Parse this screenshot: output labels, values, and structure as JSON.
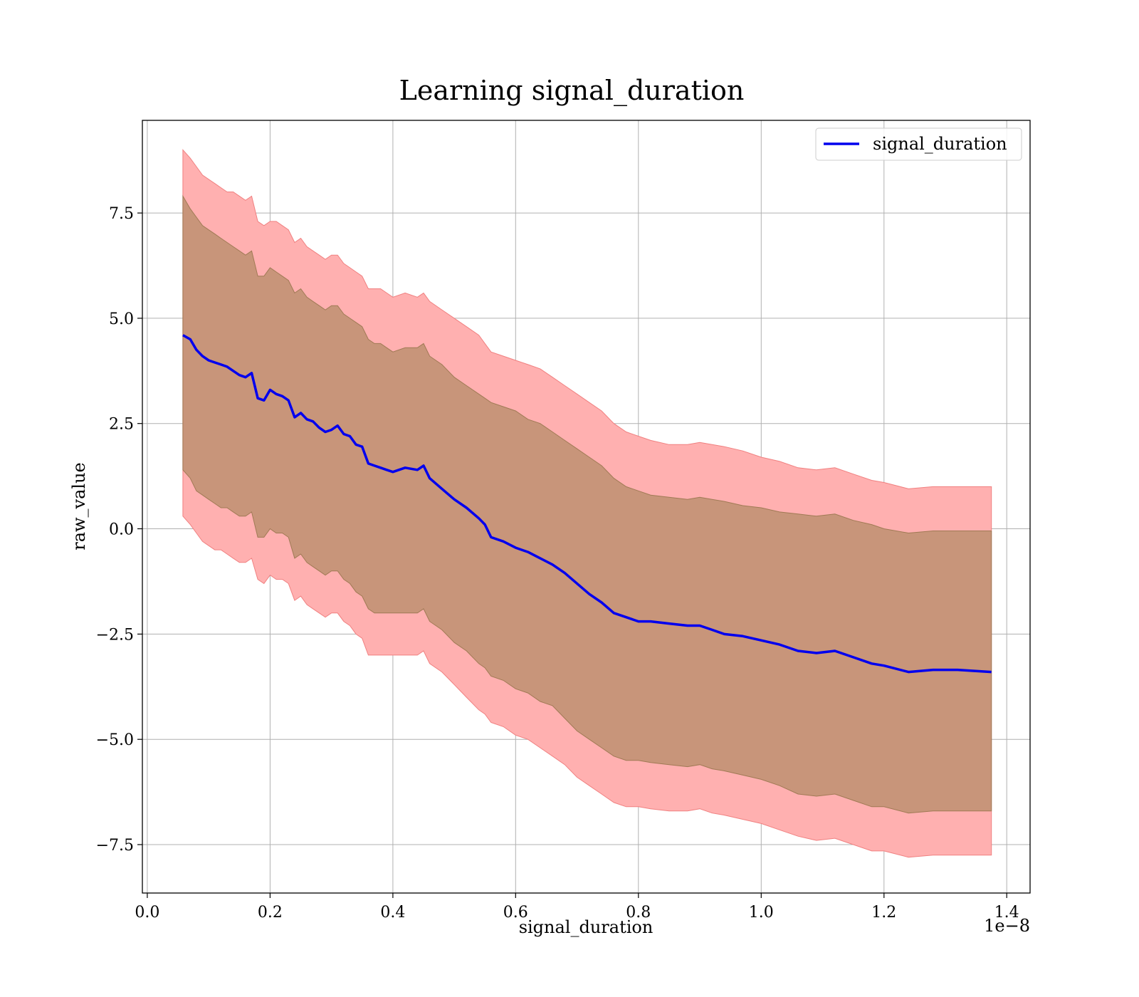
{
  "chart_data": {
    "type": "line",
    "title": "Learning signal_duration",
    "xlabel": "signal_duration",
    "ylabel": "raw_value",
    "x_offset_label": "1e−8",
    "xlim": [
      -0.008,
      1.438
    ],
    "ylim": [
      -8.65,
      9.7
    ],
    "x_ticks": [
      0.0,
      0.2,
      0.4,
      0.6,
      0.8,
      1.0,
      1.2,
      1.4
    ],
    "x_tick_labels": [
      "0.0",
      "0.2",
      "0.4",
      "0.6",
      "0.8",
      "1.0",
      "1.2",
      "1.4"
    ],
    "y_ticks": [
      -7.5,
      -5.0,
      -2.5,
      0.0,
      2.5,
      5.0,
      7.5
    ],
    "y_tick_labels": [
      "−7.5",
      "−5.0",
      "−2.5",
      "0.0",
      "2.5",
      "5.0",
      "7.5"
    ],
    "grid": true,
    "legend": {
      "position": "top-right",
      "entries": [
        "signal_duration"
      ]
    },
    "colors": {
      "line": "#0000ee",
      "band_outer": "#ffb0b0",
      "band_inner": "#c8957a",
      "band_edge": "#f08080"
    },
    "series": [
      {
        "name": "signal_duration",
        "x": [
          0.058,
          0.07,
          0.08,
          0.09,
          0.1,
          0.11,
          0.12,
          0.13,
          0.14,
          0.15,
          0.16,
          0.17,
          0.18,
          0.19,
          0.2,
          0.21,
          0.22,
          0.23,
          0.24,
          0.25,
          0.26,
          0.27,
          0.28,
          0.29,
          0.3,
          0.31,
          0.32,
          0.33,
          0.34,
          0.35,
          0.36,
          0.37,
          0.38,
          0.39,
          0.4,
          0.42,
          0.44,
          0.45,
          0.46,
          0.48,
          0.5,
          0.52,
          0.54,
          0.55,
          0.56,
          0.58,
          0.6,
          0.62,
          0.64,
          0.66,
          0.68,
          0.7,
          0.72,
          0.74,
          0.76,
          0.78,
          0.8,
          0.82,
          0.85,
          0.88,
          0.9,
          0.92,
          0.94,
          0.97,
          1.0,
          1.03,
          1.06,
          1.09,
          1.12,
          1.15,
          1.18,
          1.2,
          1.24,
          1.28,
          1.32,
          1.375
        ],
        "mean": [
          4.6,
          4.5,
          4.25,
          4.1,
          4.0,
          3.95,
          3.9,
          3.85,
          3.75,
          3.65,
          3.6,
          3.7,
          3.1,
          3.05,
          3.3,
          3.2,
          3.15,
          3.05,
          2.65,
          2.75,
          2.6,
          2.55,
          2.4,
          2.3,
          2.35,
          2.45,
          2.25,
          2.2,
          2.0,
          1.95,
          1.55,
          1.5,
          1.45,
          1.4,
          1.35,
          1.45,
          1.4,
          1.5,
          1.2,
          0.95,
          0.7,
          0.5,
          0.25,
          0.1,
          -0.2,
          -0.3,
          -0.45,
          -0.55,
          -0.7,
          -0.85,
          -1.05,
          -1.3,
          -1.55,
          -1.75,
          -2.0,
          -2.1,
          -2.2,
          -2.2,
          -2.25,
          -2.3,
          -2.3,
          -2.4,
          -2.5,
          -2.55,
          -2.65,
          -2.75,
          -2.9,
          -2.95,
          -2.9,
          -3.05,
          -3.2,
          -3.25,
          -3.4,
          -3.35,
          -3.35,
          -3.4
        ],
        "band_outer_upper": [
          9.0,
          8.8,
          8.6,
          8.4,
          8.3,
          8.2,
          8.1,
          8.0,
          8.0,
          7.9,
          7.8,
          7.9,
          7.3,
          7.2,
          7.3,
          7.3,
          7.2,
          7.1,
          6.8,
          6.9,
          6.7,
          6.6,
          6.5,
          6.4,
          6.5,
          6.5,
          6.3,
          6.2,
          6.1,
          6.0,
          5.7,
          5.7,
          5.7,
          5.6,
          5.5,
          5.6,
          5.5,
          5.6,
          5.4,
          5.2,
          5.0,
          4.8,
          4.6,
          4.4,
          4.2,
          4.1,
          4.0,
          3.9,
          3.8,
          3.6,
          3.4,
          3.2,
          3.0,
          2.8,
          2.5,
          2.3,
          2.2,
          2.1,
          2.0,
          2.0,
          2.05,
          2.0,
          1.95,
          1.85,
          1.7,
          1.6,
          1.45,
          1.4,
          1.45,
          1.3,
          1.15,
          1.1,
          0.95,
          1.0,
          1.0,
          1.0
        ],
        "band_inner_upper": [
          7.9,
          7.6,
          7.4,
          7.2,
          7.1,
          7.0,
          6.9,
          6.8,
          6.7,
          6.6,
          6.5,
          6.6,
          6.0,
          6.0,
          6.2,
          6.1,
          6.0,
          5.9,
          5.6,
          5.7,
          5.5,
          5.4,
          5.3,
          5.2,
          5.3,
          5.3,
          5.1,
          5.0,
          4.9,
          4.8,
          4.5,
          4.4,
          4.4,
          4.3,
          4.2,
          4.3,
          4.3,
          4.4,
          4.1,
          3.9,
          3.6,
          3.4,
          3.2,
          3.1,
          3.0,
          2.9,
          2.8,
          2.6,
          2.5,
          2.3,
          2.1,
          1.9,
          1.7,
          1.5,
          1.2,
          1.0,
          0.9,
          0.8,
          0.75,
          0.7,
          0.75,
          0.7,
          0.65,
          0.55,
          0.5,
          0.4,
          0.35,
          0.3,
          0.35,
          0.2,
          0.1,
          0.0,
          -0.1,
          -0.05,
          -0.05,
          -0.05
        ],
        "band_inner_lower": [
          1.4,
          1.2,
          0.9,
          0.8,
          0.7,
          0.6,
          0.5,
          0.5,
          0.4,
          0.3,
          0.3,
          0.4,
          -0.2,
          -0.2,
          0.0,
          -0.1,
          -0.1,
          -0.2,
          -0.7,
          -0.6,
          -0.8,
          -0.9,
          -1.0,
          -1.1,
          -1.0,
          -1.0,
          -1.2,
          -1.3,
          -1.5,
          -1.6,
          -1.9,
          -2.0,
          -2.0,
          -2.0,
          -2.0,
          -2.0,
          -2.0,
          -1.9,
          -2.2,
          -2.4,
          -2.7,
          -2.9,
          -3.2,
          -3.3,
          -3.5,
          -3.6,
          -3.8,
          -3.9,
          -4.1,
          -4.2,
          -4.5,
          -4.8,
          -5.0,
          -5.2,
          -5.4,
          -5.5,
          -5.5,
          -5.55,
          -5.6,
          -5.65,
          -5.6,
          -5.7,
          -5.75,
          -5.85,
          -5.95,
          -6.1,
          -6.3,
          -6.35,
          -6.3,
          -6.45,
          -6.6,
          -6.6,
          -6.75,
          -6.7,
          -6.7,
          -6.7
        ],
        "band_outer_lower": [
          0.3,
          0.1,
          -0.1,
          -0.3,
          -0.4,
          -0.5,
          -0.5,
          -0.6,
          -0.7,
          -0.8,
          -0.8,
          -0.7,
          -1.2,
          -1.3,
          -1.1,
          -1.2,
          -1.2,
          -1.3,
          -1.7,
          -1.6,
          -1.8,
          -1.9,
          -2.0,
          -2.1,
          -2.0,
          -2.0,
          -2.2,
          -2.3,
          -2.5,
          -2.6,
          -3.0,
          -3.0,
          -3.0,
          -3.0,
          -3.0,
          -3.0,
          -3.0,
          -2.9,
          -3.2,
          -3.4,
          -3.7,
          -4.0,
          -4.3,
          -4.4,
          -4.6,
          -4.7,
          -4.9,
          -5.0,
          -5.2,
          -5.4,
          -5.6,
          -5.9,
          -6.1,
          -6.3,
          -6.5,
          -6.6,
          -6.6,
          -6.65,
          -6.7,
          -6.7,
          -6.65,
          -6.75,
          -6.8,
          -6.9,
          -7.0,
          -7.15,
          -7.3,
          -7.4,
          -7.35,
          -7.5,
          -7.65,
          -7.65,
          -7.8,
          -7.75,
          -7.75,
          -7.75
        ]
      }
    ]
  }
}
